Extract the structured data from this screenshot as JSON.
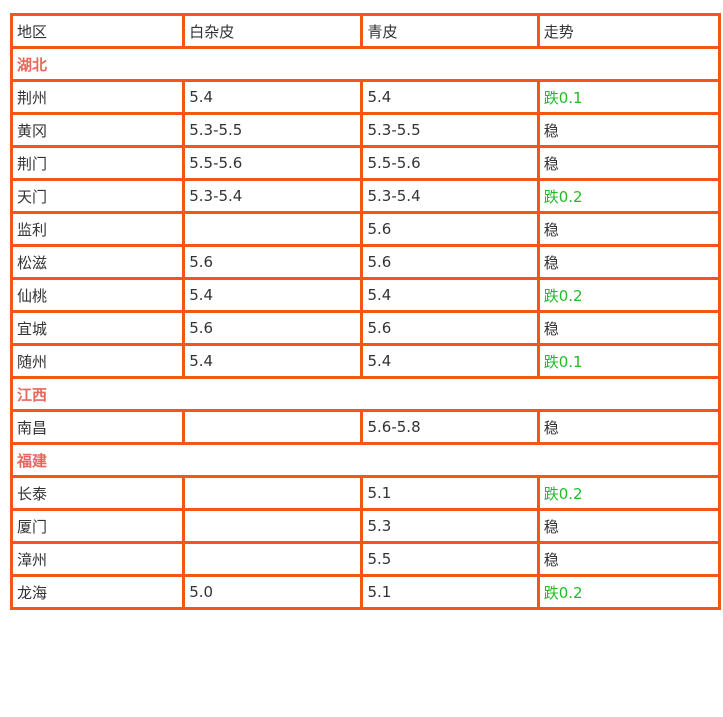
{
  "colors": {
    "border": "#f25716",
    "region": "#e8675c",
    "down": "#22bb2a"
  },
  "header": [
    "地区",
    "白杂皮",
    "青皮",
    "走势"
  ],
  "groups": [
    {
      "region": "湖北",
      "rows": [
        [
          "荆州",
          "5.4",
          "5.4",
          "跌0.1"
        ],
        [
          "黄冈",
          "5.3-5.5",
          "5.3-5.5",
          "稳"
        ],
        [
          "荆门",
          "5.5-5.6",
          "5.5-5.6",
          "稳"
        ],
        [
          "天门",
          "5.3-5.4",
          "5.3-5.4",
          "跌0.2"
        ],
        [
          "监利",
          "",
          "5.6",
          "稳"
        ],
        [
          "松滋",
          "5.6",
          "5.6",
          "稳"
        ],
        [
          "仙桃",
          "5.4",
          "5.4",
          "跌0.2"
        ],
        [
          "宜城",
          "5.6",
          "5.6",
          "稳"
        ],
        [
          "随州",
          "5.4",
          "5.4",
          "跌0.1"
        ]
      ]
    },
    {
      "region": "江西",
      "rows": [
        [
          "南昌",
          "",
          "5.6-5.8",
          "稳"
        ]
      ]
    },
    {
      "region": "福建",
      "rows": [
        [
          "长泰",
          "",
          "5.1",
          "跌0.2"
        ],
        [
          "厦门",
          "",
          "5.3",
          "稳"
        ],
        [
          "漳州",
          "",
          "5.5",
          "稳"
        ],
        [
          "龙海",
          "5.0",
          "5.1",
          "跌0.2"
        ]
      ]
    }
  ]
}
